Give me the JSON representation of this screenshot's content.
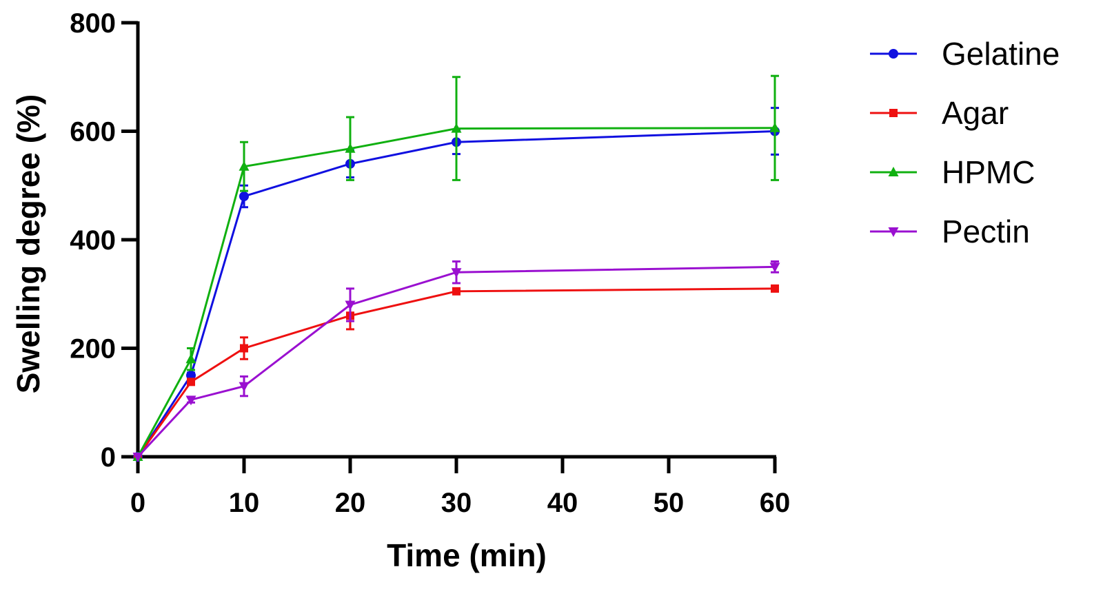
{
  "chart_data": {
    "type": "line",
    "xlabel": "Time (min)",
    "ylabel": "Swelling degree (%)",
    "xlim": [
      0,
      60
    ],
    "ylim": [
      0,
      800
    ],
    "xticks": [
      "0",
      "10",
      "20",
      "30",
      "40",
      "50",
      "60"
    ],
    "yticks": [
      "0",
      "200",
      "400",
      "600",
      "800"
    ],
    "x": [
      0,
      5,
      10,
      20,
      30,
      60
    ],
    "legend_position": "right",
    "grid": false,
    "series": [
      {
        "name": "Gelatine",
        "color": "#1010e0",
        "marker": "circle",
        "values": [
          0,
          150,
          480,
          540,
          580,
          600
        ],
        "errors": [
          0,
          5,
          20,
          25,
          22,
          43
        ]
      },
      {
        "name": "Agar",
        "color": "#ee1010",
        "marker": "square",
        "values": [
          0,
          138,
          200,
          260,
          305,
          310
        ],
        "errors": [
          0,
          5,
          20,
          25,
          5,
          5
        ]
      },
      {
        "name": "HPMC",
        "color": "#10b010",
        "marker": "triangle-up",
        "values": [
          0,
          180,
          535,
          568,
          605,
          606
        ],
        "errors": [
          0,
          20,
          45,
          58,
          95,
          96
        ]
      },
      {
        "name": "Pectin",
        "color": "#9a10d0",
        "marker": "triangle-down",
        "values": [
          0,
          105,
          130,
          280,
          340,
          350
        ],
        "errors": [
          0,
          5,
          18,
          30,
          20,
          10
        ]
      }
    ]
  }
}
